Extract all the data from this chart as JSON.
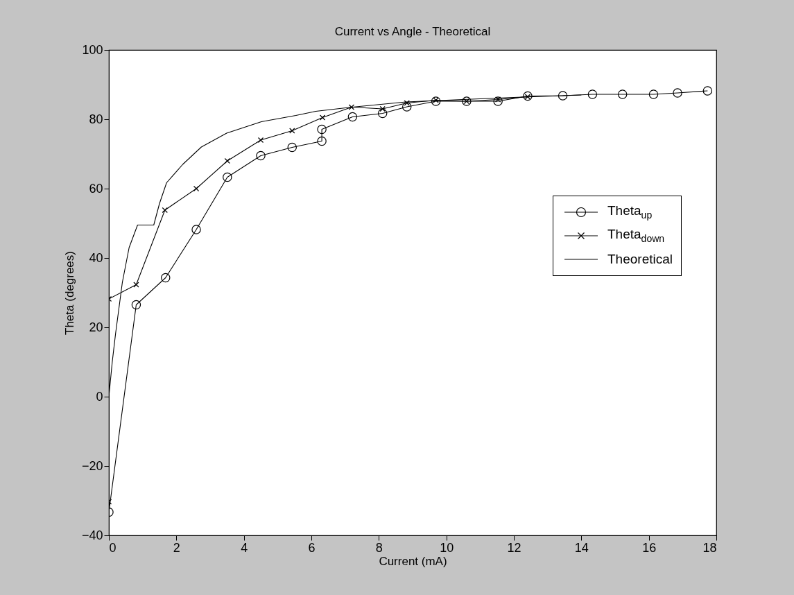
{
  "chart_data": {
    "type": "line",
    "title": "Current vs Angle - Theoretical",
    "xlabel": "Current (mA)",
    "ylabel": "Theta (degrees)",
    "xlim": [
      0,
      18
    ],
    "xticks": [
      0,
      2,
      4,
      6,
      8,
      10,
      12,
      14,
      16,
      18
    ],
    "ylim": [
      -40,
      100
    ],
    "yticks": [
      -40,
      -20,
      0,
      20,
      40,
      60,
      80,
      100
    ],
    "grid": false,
    "legend": "right",
    "series": [
      {
        "name": "Theta$_{up}$",
        "color": "#000000",
        "marker": "circle",
        "x": [
          0,
          0.81,
          1.68,
          2.59,
          3.51,
          4.5,
          5.43,
          6.31,
          6.31,
          7.22,
          8.11,
          8.83,
          9.69,
          10.6,
          11.53,
          12.41,
          13.45,
          14.33,
          15.22,
          16.14,
          16.85,
          17.74
        ],
        "values": [
          -33.3,
          26.5,
          34.3,
          48.2,
          63.3,
          69.5,
          71.9,
          73.7,
          77.1,
          80.7,
          81.7,
          83.6,
          85.2,
          85.2,
          85.2,
          86.7,
          86.8,
          87.2,
          87.2,
          87.2,
          87.6,
          88.2
        ]
      },
      {
        "name": "Theta$_{down}$",
        "color": "#000000",
        "marker": "cross",
        "x": [
          0,
          0,
          0.81,
          1.66,
          2.59,
          3.51,
          4.5,
          5.43,
          6.33,
          7.19,
          8.11,
          8.83,
          9.69,
          10.6,
          11.53,
          12.41
        ],
        "values": [
          -30.3,
          28.2,
          32.3,
          53.8,
          60,
          68,
          74,
          76.7,
          80.5,
          83.5,
          83,
          84.7,
          85.5,
          85.2,
          85.7,
          86.5
        ]
      },
      {
        "name": "Theoretical",
        "color": "#000000",
        "marker": "none",
        "x": [
          0,
          0.1,
          0.2,
          0.4,
          0.6,
          0.85,
          1.33,
          1.5,
          1.71,
          2.19,
          2.74,
          3.49,
          4.52,
          5.54,
          6.13,
          7.2,
          8.8,
          10,
          12,
          14
        ],
        "values": [
          0,
          10,
          18.3,
          33,
          43,
          49.5,
          49.5,
          55.7,
          61.7,
          67,
          72,
          76,
          79.3,
          81.1,
          82.3,
          83.5,
          85,
          85.5,
          86.3,
          87
        ]
      }
    ]
  }
}
